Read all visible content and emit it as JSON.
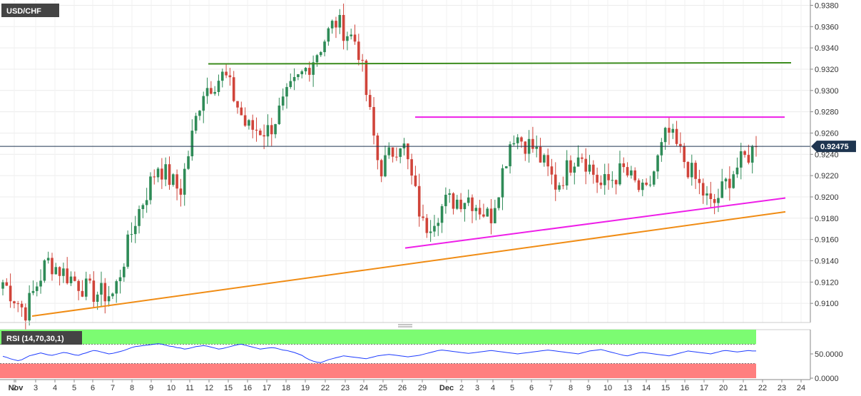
{
  "symbol": "USD/CHF",
  "current_price": "0.92475",
  "colors": {
    "up_candle": "#2e8b57",
    "down_candle": "#d0443a",
    "resistance_top": "#3c8c1e",
    "resistance_mid": "#ee1ee8",
    "support_mid": "#ee1ee8",
    "support_low": "#f08c14",
    "rsi_overbought_zone": "#7cfc72",
    "rsi_oversold_zone": "#ff7f7f",
    "rsi_line": "#1e3cff",
    "current_price_line": "#1f3550"
  },
  "chart_data": {
    "type": "candlestick",
    "title": "USD/CHF",
    "ylim": [
      0.9082,
      0.9385
    ],
    "y_ticks": [
      "0.9380",
      "0.9360",
      "0.9340",
      "0.9320",
      "0.9300",
      "0.9280",
      "0.9260",
      "0.9240",
      "0.9220",
      "0.9200",
      "0.9180",
      "0.9160",
      "0.9140",
      "0.9120",
      "0.9100"
    ],
    "x_ticks": [
      "Nov",
      "2",
      "3",
      "4",
      "5",
      "6",
      "7",
      "8",
      "9",
      "10",
      "11",
      "12",
      "15",
      "16",
      "17",
      "18",
      "19",
      "22",
      "23",
      "24",
      "25",
      "26",
      "29",
      "Dec",
      "2",
      "3",
      "4",
      "5",
      "6",
      "7",
      "8",
      "9",
      "10",
      "13",
      "14",
      "15",
      "16",
      "17",
      "20",
      "21",
      "22",
      "23",
      "24"
    ],
    "candle_count": 200,
    "current_price": 0.92475,
    "trend_lines": [
      {
        "name": "resistance",
        "from": [
          12,
          0.9325
        ],
        "to": [
          24,
          0.9326
        ]
      },
      {
        "name": "range-top",
        "from": [
          26.6,
          0.9275
        ],
        "to": [
          21.4,
          0.9275
        ]
      },
      {
        "name": "rising-support",
        "from": [
          26.5,
          0.9152
        ],
        "to": [
          22.1,
          0.9199
        ]
      },
      {
        "name": "long-term-support",
        "from": [
          1.5,
          0.9088
        ],
        "to": [
          22.1,
          0.9186
        ]
      }
    ],
    "anchors": [
      {
        "date": "Nov 1",
        "price": 0.912
      },
      {
        "date": "Nov 2",
        "price": 0.9092
      },
      {
        "date": "Nov 4",
        "price": 0.914
      },
      {
        "date": "Nov 5",
        "price": 0.9125
      },
      {
        "date": "Nov 8",
        "price": 0.911
      },
      {
        "date": "Nov 9",
        "price": 0.9108
      },
      {
        "date": "Nov 10",
        "price": 0.918
      },
      {
        "date": "Nov 12",
        "price": 0.923
      },
      {
        "date": "Nov 15",
        "price": 0.9205
      },
      {
        "date": "Nov 16",
        "price": 0.93
      },
      {
        "date": "Nov 17",
        "price": 0.9315
      },
      {
        "date": "Nov 18",
        "price": 0.9265
      },
      {
        "date": "Nov 19",
        "price": 0.9262
      },
      {
        "date": "Nov 22",
        "price": 0.93
      },
      {
        "date": "Nov 23",
        "price": 0.933
      },
      {
        "date": "Nov 24",
        "price": 0.9365
      },
      {
        "date": "Nov 25",
        "price": 0.9345
      },
      {
        "date": "Nov 26",
        "price": 0.9225
      },
      {
        "date": "Nov 29",
        "price": 0.9255
      },
      {
        "date": "Dec 1",
        "price": 0.917
      },
      {
        "date": "Dec 2",
        "price": 0.9195
      },
      {
        "date": "Dec 3",
        "price": 0.92
      },
      {
        "date": "Dec 4",
        "price": 0.918
      },
      {
        "date": "Dec 6",
        "price": 0.926
      },
      {
        "date": "Dec 7",
        "price": 0.9245
      },
      {
        "date": "Dec 8",
        "price": 0.921
      },
      {
        "date": "Dec 9",
        "price": 0.9245
      },
      {
        "date": "Dec 10",
        "price": 0.921
      },
      {
        "date": "Dec 13",
        "price": 0.9225
      },
      {
        "date": "Dec 14",
        "price": 0.92
      },
      {
        "date": "Dec 15",
        "price": 0.9262
      },
      {
        "date": "Dec 16",
        "price": 0.9225
      },
      {
        "date": "Dec 17",
        "price": 0.919
      },
      {
        "date": "Dec 20",
        "price": 0.9225
      },
      {
        "date": "Dec 21",
        "price": 0.92475
      }
    ]
  },
  "rsi": {
    "label": "RSI (14,70,30,1)",
    "y_ticks": [
      "50.0000",
      "0.0000"
    ],
    "current_value": 56,
    "values": [
      45,
      43,
      40,
      38,
      36,
      38,
      42,
      46,
      48,
      50,
      52,
      50,
      48,
      47,
      49,
      51,
      53,
      52,
      50,
      48,
      47,
      50,
      52,
      55,
      57,
      56,
      54,
      52,
      50,
      51,
      53,
      55,
      57,
      60,
      63,
      65,
      66,
      67,
      68,
      69,
      70,
      71,
      70,
      68,
      66,
      65,
      63,
      62,
      60,
      61,
      63,
      65,
      66,
      67,
      66,
      64,
      62,
      60,
      61,
      63,
      65,
      67,
      69,
      70,
      68,
      66,
      64,
      62,
      60,
      61,
      62,
      63,
      62,
      60,
      58,
      57,
      55,
      53,
      50,
      47,
      42,
      38,
      35,
      33,
      32,
      35,
      38,
      40,
      42,
      44,
      46,
      45,
      44,
      43,
      42,
      41,
      40,
      42,
      44,
      46,
      47,
      48,
      49,
      48,
      47,
      46,
      45,
      44,
      45,
      46,
      47,
      49,
      51,
      53,
      55,
      57,
      58,
      57,
      56,
      55,
      54,
      53,
      52,
      51,
      52,
      53,
      54,
      55,
      56,
      57,
      56,
      55,
      54,
      53,
      52,
      51,
      50,
      51,
      52,
      53,
      54,
      55,
      56,
      57,
      58,
      57,
      56,
      55,
      54,
      53,
      52,
      51,
      50,
      52,
      54,
      56,
      57,
      58,
      59,
      57,
      55,
      53,
      51,
      49,
      47,
      46,
      48,
      50,
      52,
      53,
      52,
      51,
      50,
      49,
      48,
      47,
      46,
      48,
      50,
      52,
      54,
      56,
      55,
      54,
      53,
      52,
      51,
      50,
      52,
      54,
      56,
      57,
      56,
      55,
      54,
      55,
      56,
      57,
      56,
      56
    ]
  }
}
